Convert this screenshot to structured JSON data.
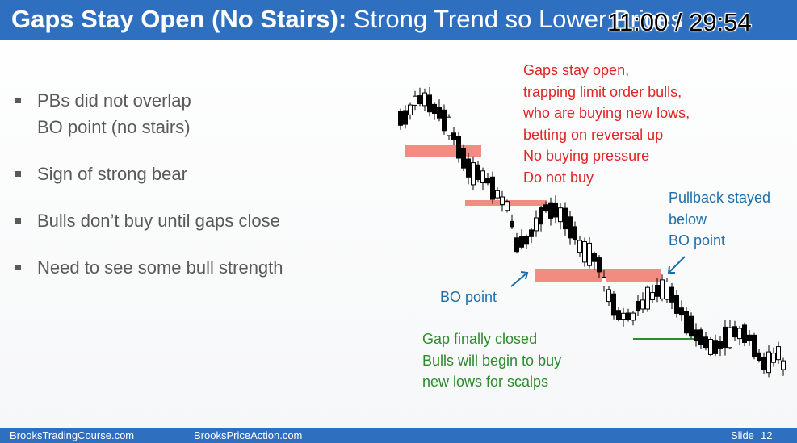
{
  "title": {
    "bold_part": "Gaps Stay Open (No Stairs):",
    "normal_part": " Strong Trend so Lower Prices"
  },
  "timer": "11:00 / 29:54",
  "bullets": [
    {
      "line1": "PBs did not overlap",
      "line2": "BO point (no stairs)"
    },
    {
      "line1": "Sign of strong bear"
    },
    {
      "line1": "Bulls don’t buy until gaps close"
    },
    {
      "line1": "Need to see some bull strength"
    }
  ],
  "annotations": {
    "gaps_open": [
      "Gaps stay open,",
      "trapping limit order bulls,",
      "who are buying new lows,",
      "betting on reversal up",
      "No buying pressure",
      "Do not buy"
    ],
    "pullback": [
      "Pullback stayed",
      "below",
      "BO point"
    ],
    "bo_point": "BO point",
    "gap_closed": [
      "Gap finally closed",
      "Bulls will begin to buy",
      "new lows for scalps"
    ]
  },
  "colors": {
    "title_bar": "#2f6fc0",
    "gap_zone": "#f28b82",
    "red_text": "#e02424",
    "blue_text": "#1f6ea8",
    "green_text": "#2e8b2e",
    "green_line": "#2e8b2e"
  },
  "footer": {
    "left": "BrooksTradingCourse.com",
    "center": "BrooksPriceAction.com",
    "slide_label": "Slide",
    "slide_number": "12"
  }
}
